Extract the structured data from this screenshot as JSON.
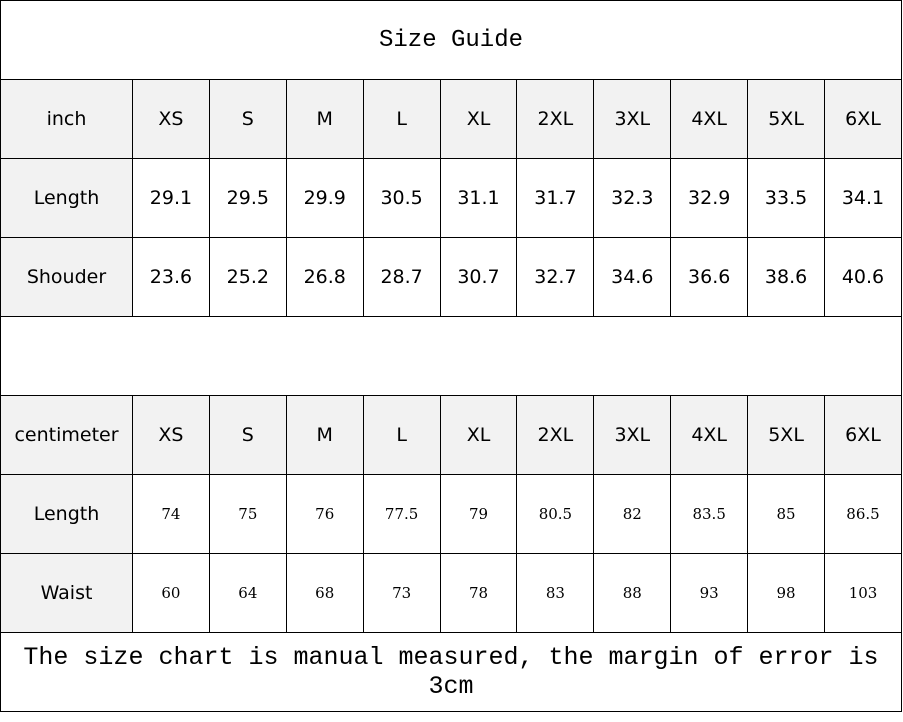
{
  "title": "Size Guide",
  "sizes": [
    "XS",
    "S",
    "M",
    "L",
    "XL",
    "2XL",
    "3XL",
    "4XL",
    "5XL",
    "6XL"
  ],
  "inch_table": {
    "unit_label": "inch",
    "rows": [
      {
        "label": "Length",
        "values": [
          "29.1",
          "29.5",
          "29.9",
          "30.5",
          "31.1",
          "31.7",
          "32.3",
          "32.9",
          "33.5",
          "34.1"
        ]
      },
      {
        "label": "Shouder",
        "values": [
          "23.6",
          "25.2",
          "26.8",
          "28.7",
          "30.7",
          "32.7",
          "34.6",
          "36.6",
          "38.6",
          "40.6"
        ]
      }
    ]
  },
  "cm_table": {
    "unit_label": "centimeter",
    "rows": [
      {
        "label": "Length",
        "values": [
          "74",
          "75",
          "76",
          "77.5",
          "79",
          "80.5",
          "82",
          "83.5",
          "85",
          "86.5"
        ]
      },
      {
        "label": "Waist",
        "values": [
          "60",
          "64",
          "68",
          "73",
          "78",
          "83",
          "88",
          "93",
          "98",
          "103"
        ]
      }
    ]
  },
  "footer_note": "The size chart is manual measured, the margin of error is 3cm",
  "colors": {
    "header_bg": "#f2f2f2",
    "border": "#000000"
  }
}
